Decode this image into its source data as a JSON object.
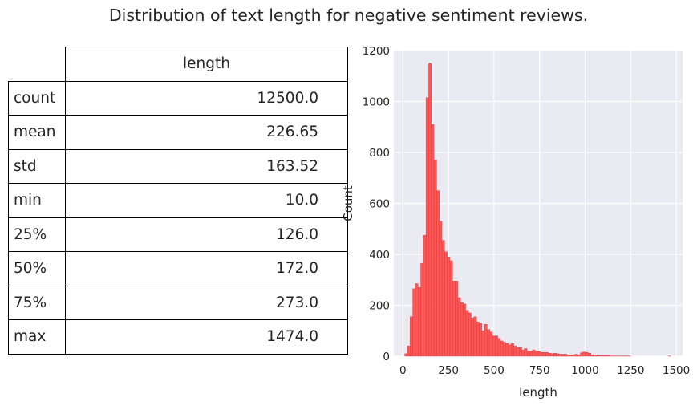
{
  "title": "Distribution of text length for negative sentiment reviews.",
  "table": {
    "column_header": "length",
    "rows": [
      {
        "label": "count",
        "value": "12500.0"
      },
      {
        "label": "mean",
        "value": "226.65"
      },
      {
        "label": "std",
        "value": "163.52"
      },
      {
        "label": "min",
        "value": "10.0"
      },
      {
        "label": "25%",
        "value": "126.0"
      },
      {
        "label": "50%",
        "value": "172.0"
      },
      {
        "label": "75%",
        "value": "273.0"
      },
      {
        "label": "max",
        "value": "1474.0"
      }
    ]
  },
  "colors": {
    "bar": "#ff4d4d",
    "plot_bg": "#eaeaf2",
    "grid": "#ffffff"
  },
  "chart_data": {
    "type": "bar",
    "xlabel": "length",
    "ylabel": "Count",
    "xlim": [
      -50,
      1535
    ],
    "ylim": [
      0,
      1200
    ],
    "xticks": [
      0,
      250,
      500,
      750,
      1000,
      1250,
      1500
    ],
    "yticks": [
      0,
      200,
      400,
      600,
      800,
      1000,
      1200
    ],
    "grid": true,
    "bin_width": 14.6,
    "bin_start": 10,
    "values": [
      10,
      40,
      155,
      265,
      285,
      270,
      365,
      475,
      1015,
      1150,
      910,
      770,
      650,
      530,
      455,
      410,
      390,
      375,
      295,
      295,
      230,
      210,
      205,
      180,
      170,
      150,
      155,
      135,
      130,
      100,
      125,
      105,
      95,
      80,
      80,
      70,
      60,
      55,
      50,
      45,
      50,
      40,
      35,
      35,
      25,
      30,
      20,
      20,
      25,
      20,
      20,
      15,
      15,
      15,
      12,
      10,
      12,
      10,
      8,
      8,
      8,
      5,
      6,
      5,
      8,
      5,
      14,
      17,
      15,
      12,
      5,
      4,
      3,
      2,
      2,
      2,
      2,
      1,
      1,
      1,
      1,
      1,
      1,
      1,
      1,
      0,
      0,
      0,
      0,
      0,
      0,
      0,
      0,
      0,
      0,
      0,
      0,
      0,
      0,
      1
    ]
  }
}
